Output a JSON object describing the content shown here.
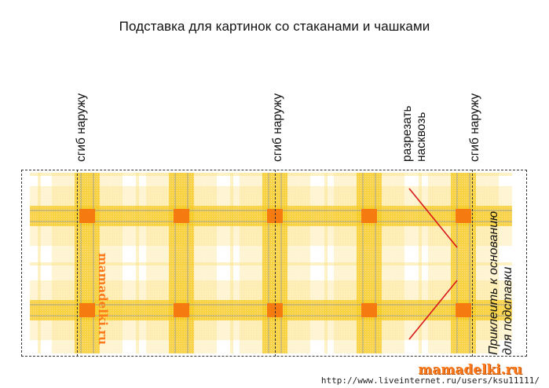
{
  "title": "Подставка для картинок со стаканами и чашками",
  "fold_labels": [
    "сгиб наружу",
    "сгиб наружу",
    "сгиб наружу"
  ],
  "cut_label": {
    "line1": "разрезать",
    "line2": "насквозь"
  },
  "glue_label": {
    "line1": "Приклеить к основанию",
    "line2": "для подставки"
  },
  "watermark": "mamadelki.ru",
  "footer": {
    "brand": "mamadelki.ru",
    "url": "http://www.liveinternet.ru/users/ksu11111/"
  },
  "colors": {
    "stripe_yellow": "#f6c81e",
    "stripe_light": "#fbe07a",
    "cross_orange": "#f57a10",
    "grey_line": "#9a9a9a",
    "cut_line": "#d81818",
    "watermark": "#ff7a1a"
  }
}
